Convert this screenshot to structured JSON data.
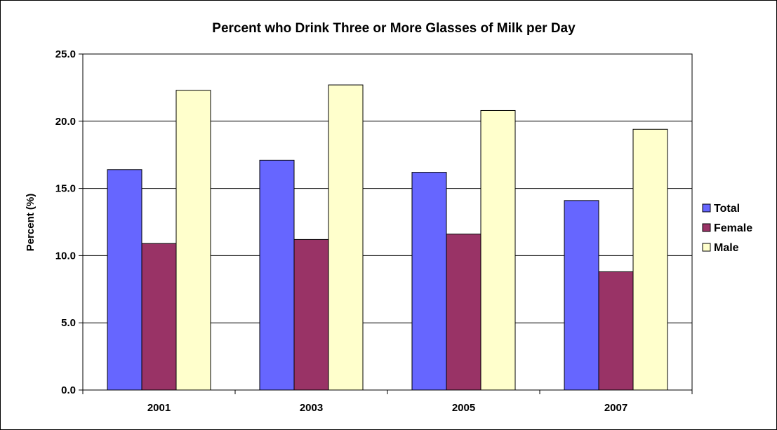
{
  "chart_data": {
    "type": "bar",
    "title": "Percent who Drink Three or More Glasses of Milk per Day",
    "xlabel": "",
    "ylabel": "Percent (%)",
    "categories": [
      "2001",
      "2003",
      "2005",
      "2007"
    ],
    "ylim": [
      0,
      25
    ],
    "yticks": [
      "0.0",
      "5.0",
      "10.0",
      "15.0",
      "20.0",
      "25.0"
    ],
    "grid": true,
    "legend_position": "right",
    "series": [
      {
        "name": "Total",
        "color": "#6666ff",
        "values": [
          16.4,
          17.1,
          16.2,
          14.1
        ]
      },
      {
        "name": "Female",
        "color": "#993366",
        "values": [
          10.9,
          11.2,
          11.6,
          8.8
        ]
      },
      {
        "name": "Male",
        "color": "#ffffcc",
        "values": [
          22.3,
          22.7,
          20.8,
          19.4
        ]
      }
    ]
  }
}
